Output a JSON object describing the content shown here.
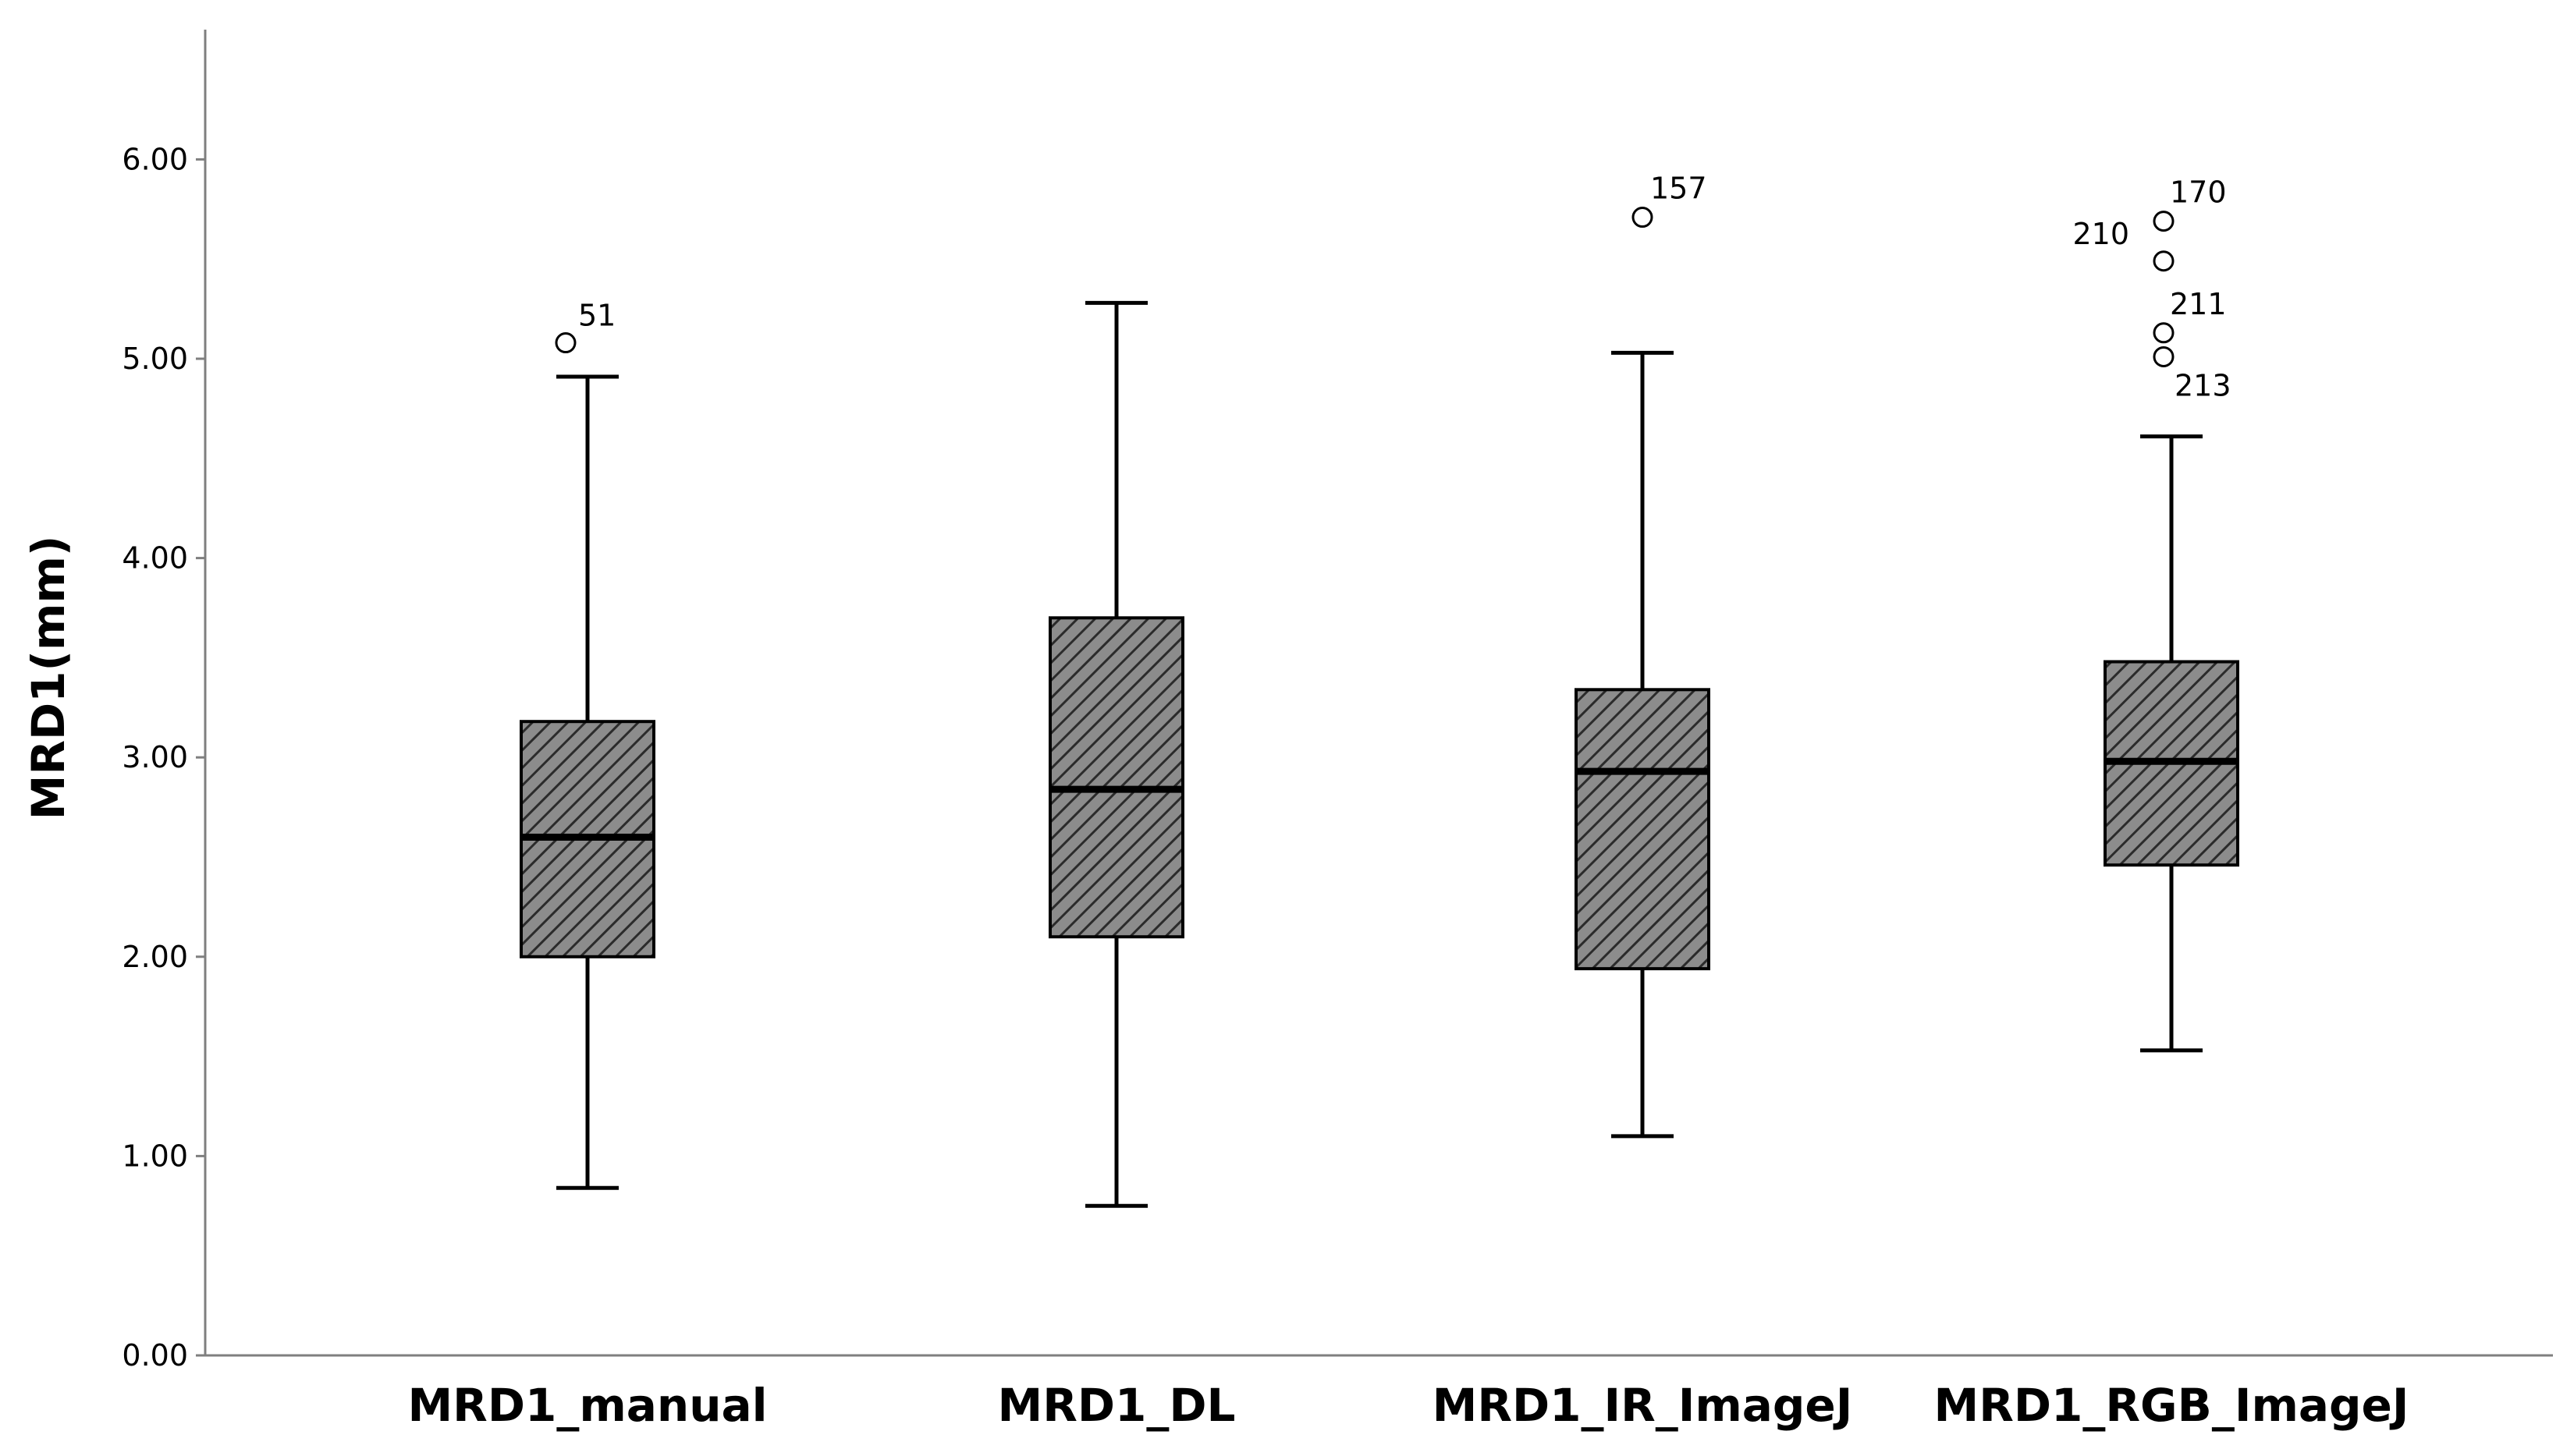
{
  "chart_data": {
    "type": "boxplot",
    "title": "",
    "xlabel": "",
    "ylabel": "MRD1(mm)",
    "ylim": [
      0,
      6.6
    ],
    "yticks": [
      0,
      1,
      2,
      3,
      4,
      5,
      6
    ],
    "ytick_labels": [
      "0.00",
      "1.00",
      "2.00",
      "3.00",
      "4.00",
      "5.00",
      "6.00"
    ],
    "grid": false,
    "categories": [
      "MRD1_manual",
      "MRD1_DL",
      "MRD1_IR_ImageJ",
      "MRD1_RGB_ImageJ"
    ],
    "boxes": [
      {
        "name": "MRD1_manual",
        "whisker_low": 0.84,
        "q1": 2.0,
        "median": 2.6,
        "q3": 3.18,
        "whisker_high": 4.91,
        "outliers": [
          {
            "value": 5.08,
            "label": "51"
          }
        ]
      },
      {
        "name": "MRD1_DL",
        "whisker_low": 0.75,
        "q1": 2.1,
        "median": 2.84,
        "q3": 3.7,
        "whisker_high": 5.28,
        "outliers": []
      },
      {
        "name": "MRD1_IR_ImageJ",
        "whisker_low": 1.1,
        "q1": 1.94,
        "median": 2.93,
        "q3": 3.34,
        "whisker_high": 5.03,
        "outliers": [
          {
            "value": 5.71,
            "label": "157"
          }
        ]
      },
      {
        "name": "MRD1_RGB_ImageJ",
        "whisker_low": 1.53,
        "q1": 2.46,
        "median": 2.98,
        "q3": 3.48,
        "whisker_high": 4.61,
        "outliers": [
          {
            "value": 5.69,
            "label": "170"
          },
          {
            "value": 5.49,
            "label": "210"
          },
          {
            "value": 5.13,
            "label": "211"
          },
          {
            "value": 5.01,
            "label": "213"
          }
        ]
      }
    ],
    "style": {
      "box_fill": "#8c8c8c",
      "hatch_color": "#2b2b2b",
      "line_color": "#000000",
      "axis_color": "#7f7f7f"
    }
  }
}
